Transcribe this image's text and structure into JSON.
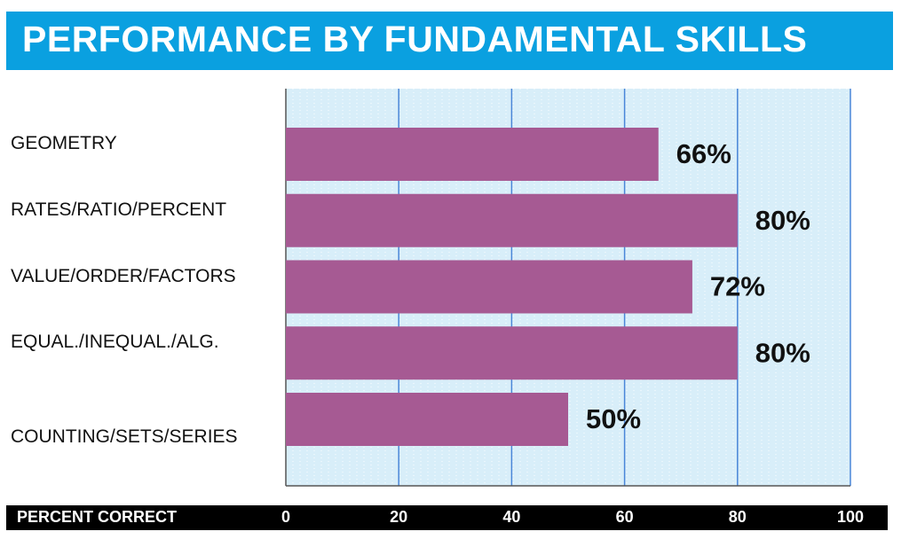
{
  "title": "PERFORMANCE BY FUNDAMENTAL SKILLS",
  "chart_data": {
    "type": "bar",
    "orientation": "horizontal",
    "categories": [
      "GEOMETRY",
      "RATES/RATIO/PERCENT",
      "VALUE/ORDER/FACTORS",
      "EQUAL./INEQUAL./ALG.",
      "COUNTING/SETS/SERIES"
    ],
    "values": [
      66,
      80,
      72,
      80,
      50
    ],
    "data_labels": [
      "66%",
      "80%",
      "72%",
      "80%",
      "50%"
    ],
    "xlabel": "PERCENT CORRECT",
    "xlim": [
      0,
      100
    ],
    "xticks": [
      "0",
      "20",
      "40",
      "60",
      "80",
      "100"
    ],
    "grid": true,
    "colors": {
      "bar": "#a65a93",
      "plot_background": "#d8eef9",
      "gridline": "#4a86d8",
      "title_bar": "#0aa0e0",
      "axis_bar": "#000000"
    }
  }
}
